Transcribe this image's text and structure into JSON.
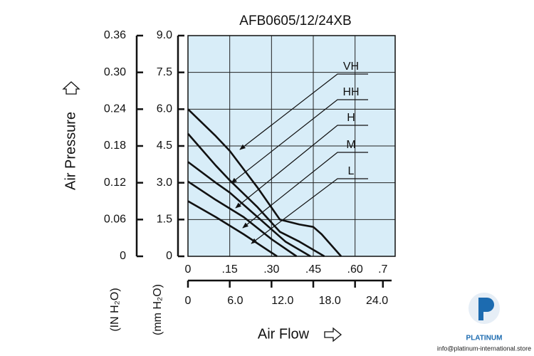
{
  "chart_data": {
    "type": "line",
    "title": "AFB0605/12/24XB",
    "x_label": "Air Flow",
    "y_label": "Air Pressure",
    "y_unit_label": "(mm H₂O)",
    "y2_unit_label": "(IN H₂O)",
    "xlim": [
      0,
      0.744
    ],
    "xticks": [
      0,
      {
        "value": 0.15,
        "label": ".15"
      },
      {
        "value": 0.3,
        "label": ".30"
      },
      {
        "value": 0.45,
        "label": ".45"
      },
      {
        "value": 0.6,
        "label": ".60"
      },
      {
        "value": 0.7,
        "label": ".7"
      }
    ],
    "x2lim": [
      0,
      26.3
    ],
    "x2ticks": [
      0,
      {
        "value": 6,
        "label": "6.0"
      },
      {
        "value": 12,
        "label": "12.0"
      },
      {
        "value": 18,
        "label": "18.0"
      },
      {
        "value": 24,
        "label": "24.0"
      }
    ],
    "ylim": [
      0,
      9
    ],
    "yticks": [
      0,
      1.5,
      {
        "value": 3,
        "label": "3.0"
      },
      4.5,
      {
        "value": 6,
        "label": "6.0"
      },
      7.5,
      {
        "value": 9,
        "label": "9.0"
      }
    ],
    "y2lim": [
      0,
      0.36
    ],
    "y2ticks": [
      0,
      0.06,
      0.12,
      0.18,
      0.24,
      {
        "value": 0.3,
        "label": "0.30"
      },
      0.36
    ],
    "grid": true,
    "background": "#d8edf8",
    "series": [
      {
        "name": "VH",
        "color": "#111111",
        "x": [
          0,
          0.1,
          0.15,
          0.25,
          0.33,
          0.4,
          0.45,
          0.48,
          0.55
        ],
        "values": [
          6.0,
          4.9,
          4.3,
          2.8,
          1.5,
          1.3,
          1.2,
          0.9,
          0
        ]
      },
      {
        "name": "HH",
        "color": "#111111",
        "x": [
          0,
          0.1,
          0.15,
          0.25,
          0.33,
          0.4,
          0.49
        ],
        "values": [
          5.0,
          3.7,
          3.1,
          2.0,
          1.0,
          0.6,
          0
        ]
      },
      {
        "name": "H",
        "color": "#111111",
        "x": [
          0,
          0.1,
          0.15,
          0.25,
          0.35,
          0.44
        ],
        "values": [
          3.85,
          3.0,
          2.6,
          1.6,
          0.6,
          0
        ]
      },
      {
        "name": "M",
        "color": "#111111",
        "x": [
          0,
          0.1,
          0.2,
          0.3,
          0.39
        ],
        "values": [
          3.05,
          2.3,
          1.6,
          0.7,
          0
        ]
      },
      {
        "name": "L",
        "color": "#111111",
        "x": [
          0,
          0.1,
          0.2,
          0.32
        ],
        "values": [
          2.25,
          1.6,
          0.9,
          0
        ]
      }
    ]
  },
  "watermark": {
    "brand": "PLATINUM",
    "email": "info@platinum-international.store"
  }
}
